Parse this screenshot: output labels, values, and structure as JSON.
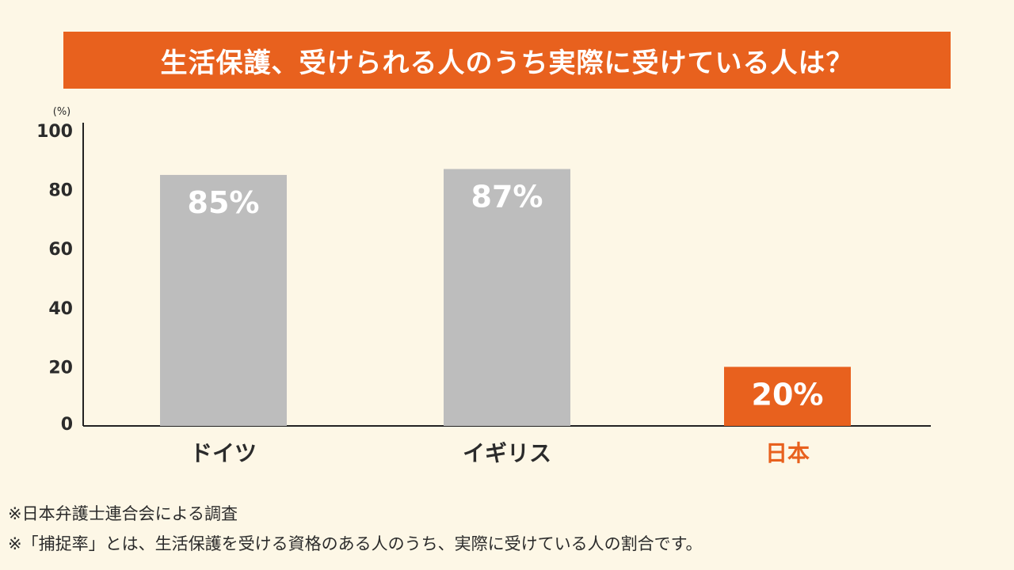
{
  "title": "生活保護、受けられる人のうち実際に受けている人は？",
  "chart_data": {
    "type": "bar",
    "unit_label": "(%)",
    "categories": [
      "ドイツ",
      "イギリス",
      "日本"
    ],
    "values": [
      85,
      87,
      20
    ],
    "value_labels": [
      "85%",
      "87%",
      "20%"
    ],
    "ylim": [
      0,
      100
    ],
    "yticks": [
      0,
      20,
      40,
      60,
      80,
      100
    ],
    "grid": false,
    "colors": {
      "bar_default": "#bdbdbd",
      "bar_highlight": "#e8611e",
      "label_default": "#2b2b2b",
      "label_highlight": "#e8611e"
    },
    "highlight_index": 2
  },
  "notes": [
    "※日本弁護士連合会による調査",
    "※「捕捉率」とは、生活保護を受ける資格のある人のうち、実際に受けている人の割合です。"
  ]
}
